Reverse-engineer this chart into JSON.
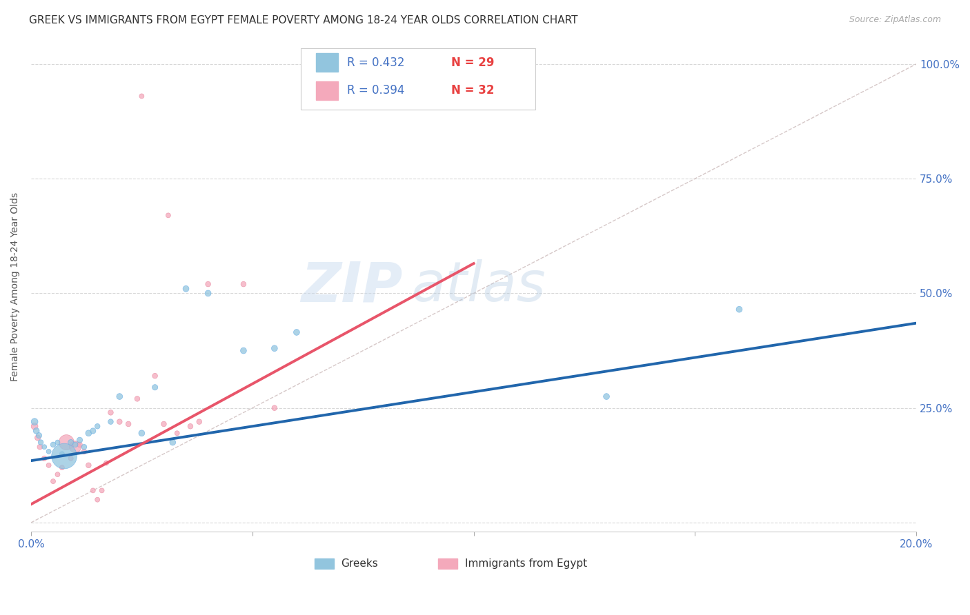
{
  "title": "GREEK VS IMMIGRANTS FROM EGYPT FEMALE POVERTY AMONG 18-24 YEAR OLDS CORRELATION CHART",
  "source": "Source: ZipAtlas.com",
  "ylabel": "Female Poverty Among 18-24 Year Olds",
  "xlim": [
    0.0,
    0.2
  ],
  "ylim": [
    -0.02,
    1.05
  ],
  "blue_color": "#92c5de",
  "pink_color": "#f4a9bb",
  "blue_line_color": "#2166ac",
  "pink_line_color": "#e8556a",
  "title_fontsize": 11,
  "axis_label_fontsize": 10,
  "tick_fontsize": 11,
  "watermark_text": "ZIPatlas",
  "blue_scatter_x": [
    0.0008,
    0.0012,
    0.0018,
    0.0022,
    0.003,
    0.004,
    0.005,
    0.006,
    0.007,
    0.0075,
    0.009,
    0.01,
    0.011,
    0.012,
    0.013,
    0.014,
    0.015,
    0.018,
    0.02,
    0.025,
    0.028,
    0.032,
    0.035,
    0.04,
    0.048,
    0.055,
    0.06,
    0.13,
    0.16
  ],
  "blue_scatter_y": [
    0.22,
    0.2,
    0.19,
    0.175,
    0.165,
    0.155,
    0.17,
    0.175,
    0.15,
    0.145,
    0.175,
    0.17,
    0.18,
    0.165,
    0.195,
    0.2,
    0.21,
    0.22,
    0.275,
    0.195,
    0.295,
    0.175,
    0.51,
    0.5,
    0.375,
    0.38,
    0.415,
    0.275,
    0.465
  ],
  "blue_scatter_size": [
    50,
    40,
    35,
    30,
    25,
    25,
    30,
    25,
    25,
    700,
    35,
    30,
    35,
    30,
    40,
    35,
    30,
    30,
    40,
    40,
    35,
    40,
    40,
    40,
    40,
    40,
    40,
    40,
    40
  ],
  "pink_scatter_x": [
    0.0008,
    0.0015,
    0.002,
    0.003,
    0.004,
    0.005,
    0.006,
    0.007,
    0.008,
    0.009,
    0.01,
    0.011,
    0.012,
    0.013,
    0.014,
    0.015,
    0.016,
    0.017,
    0.018,
    0.02,
    0.022,
    0.024,
    0.028,
    0.03,
    0.033,
    0.036,
    0.038,
    0.04,
    0.048,
    0.055,
    0.025,
    0.031
  ],
  "pink_scatter_y": [
    0.21,
    0.185,
    0.165,
    0.14,
    0.125,
    0.09,
    0.105,
    0.12,
    0.175,
    0.14,
    0.165,
    0.17,
    0.155,
    0.125,
    0.07,
    0.05,
    0.07,
    0.13,
    0.24,
    0.22,
    0.215,
    0.27,
    0.32,
    0.215,
    0.195,
    0.21,
    0.22,
    0.52,
    0.52,
    0.25,
    0.93,
    0.67
  ],
  "pink_scatter_size": [
    50,
    35,
    30,
    28,
    25,
    25,
    25,
    25,
    250,
    25,
    150,
    30,
    28,
    30,
    25,
    25,
    25,
    25,
    30,
    30,
    30,
    30,
    30,
    30,
    25,
    30,
    30,
    30,
    30,
    30,
    25,
    25
  ],
  "blue_trend_x": [
    0.0,
    0.2
  ],
  "blue_trend_y": [
    0.135,
    0.435
  ],
  "pink_trend_x": [
    0.0,
    0.1
  ],
  "pink_trend_y": [
    0.04,
    0.565
  ],
  "background_color": "#ffffff",
  "grid_color": "#d8d8d8"
}
